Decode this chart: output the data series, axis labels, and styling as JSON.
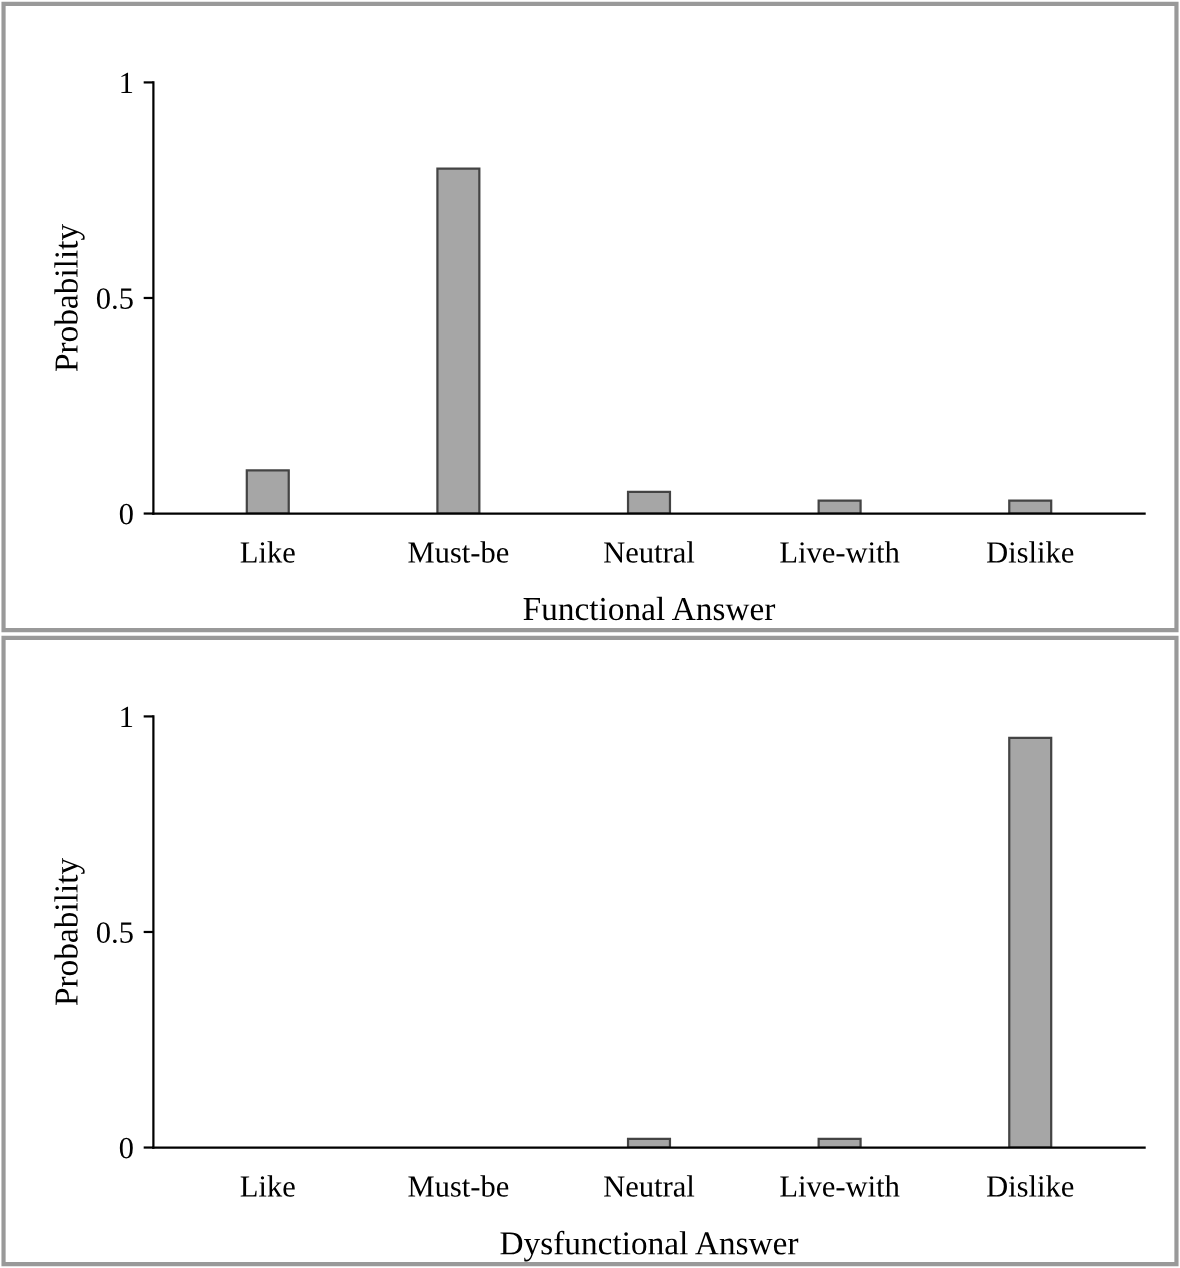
{
  "chart_data": [
    {
      "type": "bar",
      "categories": [
        "Like",
        "Must-be",
        "Neutral",
        "Live-with",
        "Dislike"
      ],
      "values": [
        0.1,
        0.8,
        0.05,
        0.03,
        0.03
      ],
      "color": "#a6a6a6",
      "xlabel": "Functional Answer",
      "ylabel": "Probability",
      "ylim": [
        0,
        1
      ],
      "yticks": [
        0,
        0.5,
        1
      ],
      "grid": false,
      "legend": false
    },
    {
      "type": "bar",
      "categories": [
        "Like",
        "Must-be",
        "Neutral",
        "Live-with",
        "Dislike"
      ],
      "values": [
        0,
        0,
        0.02,
        0.02,
        0.95
      ],
      "color": "#a6a6a6",
      "xlabel": "Dysfunctional Answer",
      "ylabel": "Probability",
      "ylim": [
        0,
        1
      ],
      "yticks": [
        0,
        0.5,
        1
      ],
      "grid": false,
      "legend": false
    }
  ]
}
